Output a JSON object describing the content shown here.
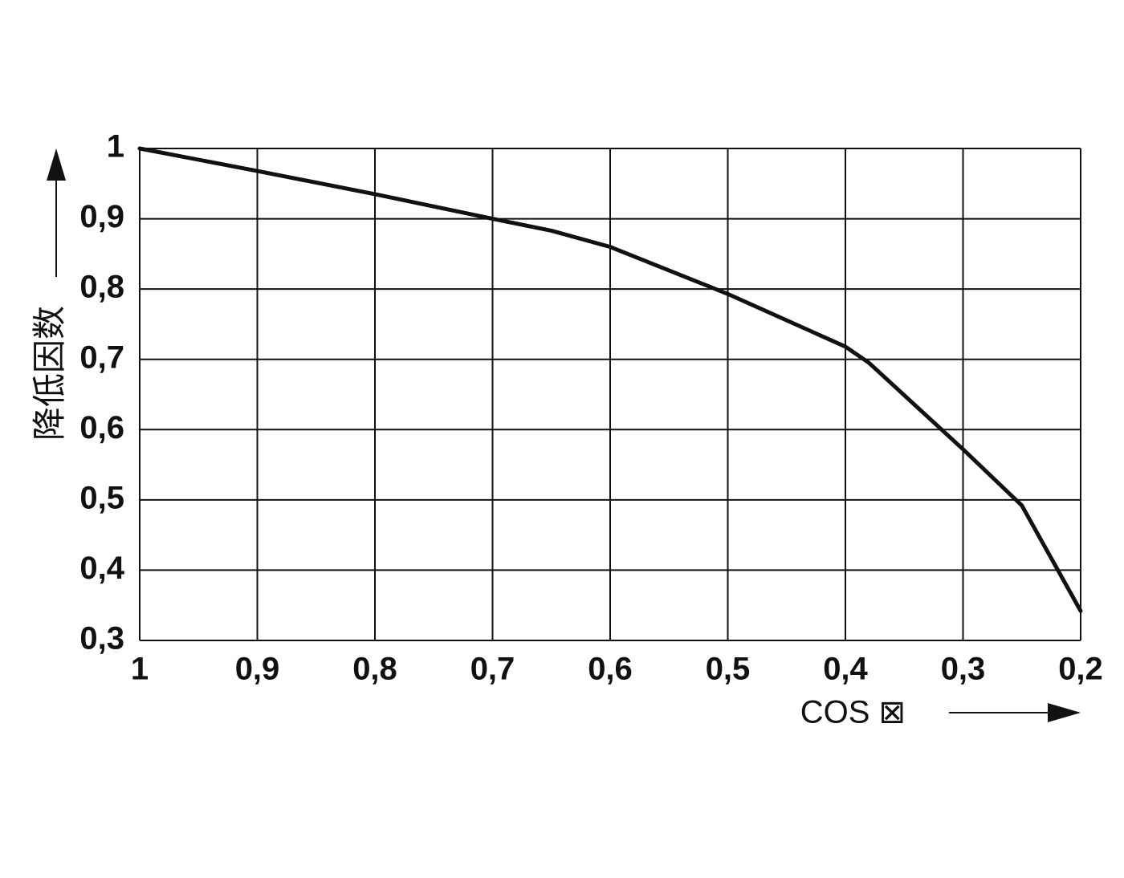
{
  "chart_data": {
    "type": "line",
    "xlabel": "COS ⊠",
    "ylabel": "降低因数",
    "x": [
      1,
      0.9,
      0.8,
      0.7,
      0.65,
      0.6,
      0.5,
      0.4,
      0.38,
      0.3,
      0.25,
      0.2
    ],
    "series": [
      {
        "color": "#111111",
        "values": [
          1,
          0.968,
          0.935,
          0.9,
          0.883,
          0.86,
          0.793,
          0.718,
          0.695,
          0.572,
          0.492,
          0.342
        ]
      }
    ],
    "xlim": [
      1,
      0.2
    ],
    "ylim": [
      0.3,
      1
    ],
    "xticks": [
      1,
      {
        "value": 0.9,
        "label": "0,9"
      },
      {
        "value": 0.8,
        "label": "0,8"
      },
      {
        "value": 0.7,
        "label": "0,7"
      },
      {
        "value": 0.6,
        "label": "0,6"
      },
      {
        "value": 0.5,
        "label": "0,5"
      },
      {
        "value": 0.4,
        "label": "0,4"
      },
      {
        "value": 0.3,
        "label": "0,3"
      },
      {
        "value": 0.2,
        "label": "0,2"
      }
    ],
    "yticks": [
      {
        "value": 0.3,
        "label": "0,3"
      },
      {
        "value": 0.4,
        "label": "0,4"
      },
      {
        "value": 0.5,
        "label": "0,5"
      },
      {
        "value": 0.6,
        "label": "0,6"
      },
      {
        "value": 0.7,
        "label": "0,7"
      },
      {
        "value": 0.8,
        "label": "0,8"
      },
      {
        "value": 0.9,
        "label": "0,9"
      },
      1
    ],
    "grid": true
  }
}
